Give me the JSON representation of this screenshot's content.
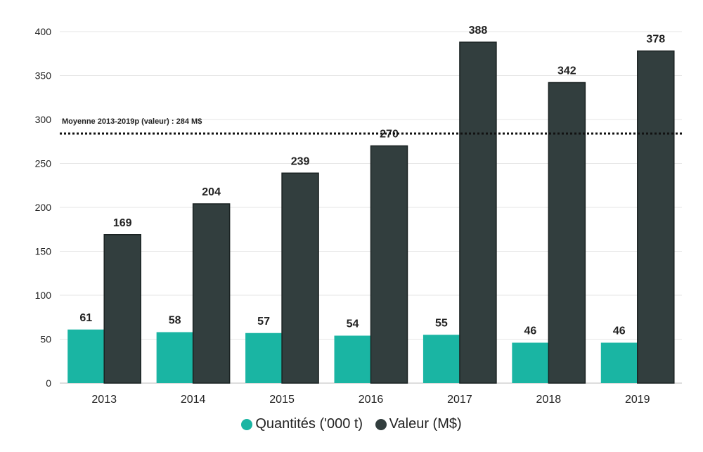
{
  "chart_data": {
    "type": "bar",
    "categories": [
      "2013",
      "2014",
      "2015",
      "2016",
      "2017",
      "2018",
      "2019"
    ],
    "series": [
      {
        "name": "Quantités ('000 t)",
        "color": "#1ab5a3",
        "values": [
          61,
          58,
          57,
          54,
          55,
          46,
          46
        ]
      },
      {
        "name": "Valeur (M$)",
        "color": "#323e3e",
        "values": [
          169,
          204,
          239,
          270,
          388,
          342,
          378
        ]
      }
    ],
    "ylim": [
      0,
      400
    ],
    "yticks": [
      0,
      50,
      100,
      150,
      200,
      250,
      300,
      350,
      400
    ],
    "grid": true,
    "legend_position": "bottom",
    "reference_line": {
      "value": 284,
      "label": "Moyenne 2013-2019p (valeur) : 284 M$",
      "style": "dotted"
    }
  }
}
